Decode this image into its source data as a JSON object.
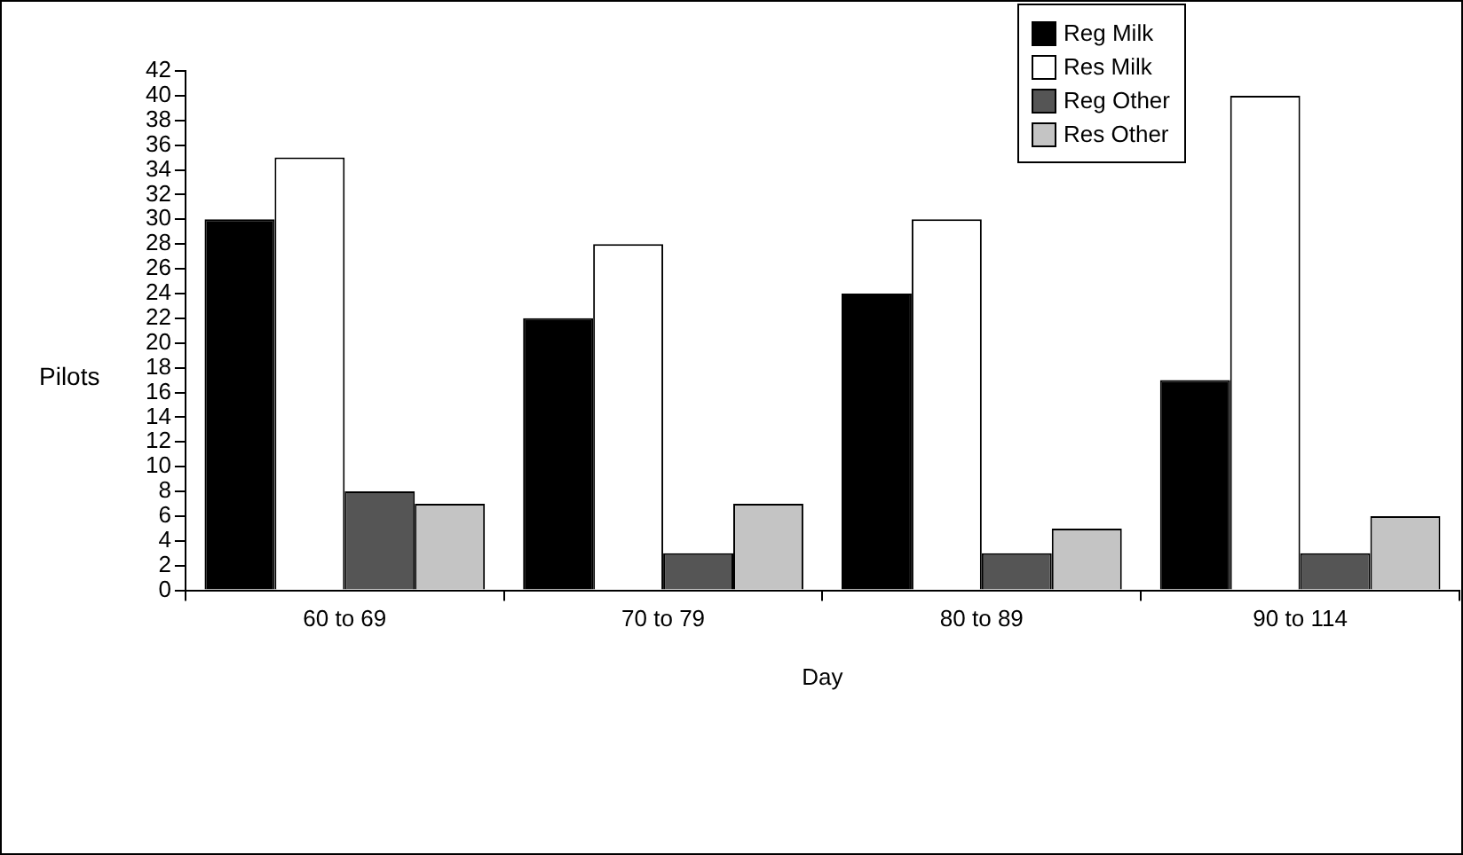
{
  "chart_data": {
    "type": "bar",
    "xlabel": "Day",
    "ylabel": "Pilots",
    "categories": [
      "60 to 69",
      "70 to 79",
      "80 to 89",
      "90 to 114"
    ],
    "series": [
      {
        "name": "Reg Milk",
        "color": "#000000",
        "values": [
          30,
          22,
          24,
          17
        ]
      },
      {
        "name": "Res Milk",
        "color": "#ffffff",
        "values": [
          35,
          28,
          30,
          40
        ]
      },
      {
        "name": "Reg Other",
        "color": "#555555",
        "values": [
          8,
          3,
          3,
          3
        ]
      },
      {
        "name": "Res Other",
        "color": "#c4c4c4",
        "values": [
          7,
          7,
          5,
          6
        ]
      }
    ],
    "ylim": [
      0,
      42
    ],
    "yticks": [
      0,
      2,
      4,
      6,
      8,
      10,
      12,
      14,
      16,
      18,
      20,
      22,
      24,
      26,
      28,
      30,
      32,
      34,
      36,
      38,
      40,
      42
    ],
    "grid": false,
    "legend": "top right"
  }
}
